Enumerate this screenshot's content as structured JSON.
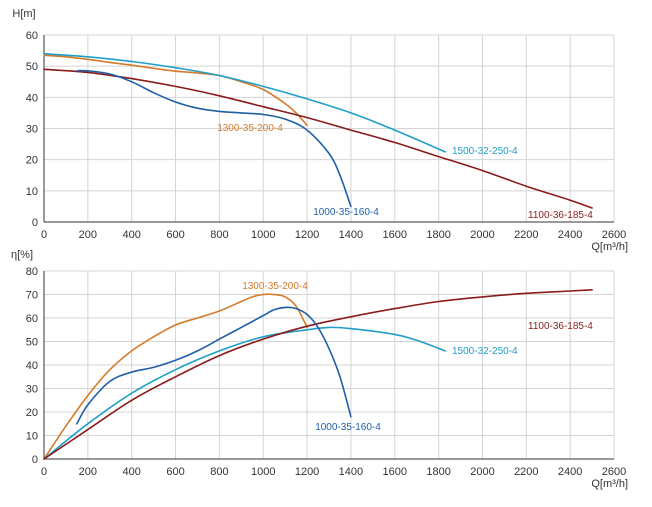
{
  "chart_data": [
    {
      "type": "line",
      "ylabel": "H[m]",
      "xlabel": "Q[m³/h]",
      "xlim": [
        0,
        2600
      ],
      "ylim": [
        0,
        60
      ],
      "xticks": [
        0,
        200,
        400,
        600,
        800,
        1000,
        1200,
        1400,
        1600,
        1800,
        2000,
        2200,
        2400,
        2600
      ],
      "yticks": [
        0,
        10,
        20,
        30,
        40,
        50,
        60
      ],
      "grid": true,
      "series": [
        {
          "name": "1300-35-200-4",
          "color": "#d47a2a",
          "x": [
            0,
            100,
            200,
            300,
            400,
            500,
            600,
            700,
            800,
            900,
            1000,
            1100,
            1150,
            1200
          ],
          "y": [
            53.5,
            53,
            52.2,
            51.2,
            50.3,
            49.3,
            48.4,
            47.8,
            47,
            45,
            42.5,
            38,
            35,
            31
          ]
        },
        {
          "name": "1500-32-250-4",
          "color": "#1f9fc8",
          "x": [
            0,
            200,
            400,
            600,
            800,
            1000,
            1200,
            1400,
            1600,
            1830
          ],
          "y": [
            54,
            53,
            51.5,
            49.5,
            47,
            43.5,
            39.5,
            35,
            29.5,
            22.5
          ]
        },
        {
          "name": "1100-36-185-4",
          "color": "#8b1a1a",
          "x": [
            0,
            200,
            400,
            600,
            800,
            1000,
            1200,
            1400,
            1600,
            1800,
            2000,
            2200,
            2400,
            2500
          ],
          "y": [
            49,
            48,
            46,
            43.5,
            40.5,
            37,
            33.5,
            29.5,
            25.5,
            21,
            16.5,
            11.5,
            7,
            4.5
          ]
        },
        {
          "name": "1000-35-160-4",
          "color": "#1f5fa8",
          "x": [
            150,
            200,
            300,
            400,
            500,
            600,
            700,
            800,
            900,
            1000,
            1100,
            1200,
            1300,
            1350,
            1400
          ],
          "y": [
            48.5,
            48.5,
            47.5,
            45,
            41.5,
            38.5,
            36.5,
            35.5,
            35,
            34.5,
            33,
            29.5,
            22,
            15,
            5
          ]
        }
      ]
    },
    {
      "type": "line",
      "ylabel": "η[%]",
      "xlabel": "Q[m³/h]",
      "xlim": [
        0,
        2600
      ],
      "ylim": [
        0,
        80
      ],
      "xticks": [
        0,
        200,
        400,
        600,
        800,
        1000,
        1200,
        1400,
        1600,
        1800,
        2000,
        2200,
        2400,
        2600
      ],
      "yticks": [
        0,
        10,
        20,
        30,
        40,
        50,
        60,
        70,
        80
      ],
      "grid": true,
      "series": [
        {
          "name": "1300-35-200-4",
          "color": "#d47a2a",
          "x": [
            0,
            100,
            200,
            300,
            400,
            500,
            600,
            700,
            800,
            900,
            950,
            1000,
            1050,
            1100,
            1150,
            1200
          ],
          "y": [
            0,
            14,
            27,
            38,
            46,
            52,
            57,
            60,
            63,
            67,
            69,
            70,
            70,
            69,
            65,
            56
          ]
        },
        {
          "name": "1500-32-250-4",
          "color": "#1f9fc8",
          "x": [
            0,
            200,
            400,
            600,
            800,
            1000,
            1200,
            1300,
            1400,
            1600,
            1700,
            1830
          ],
          "y": [
            0,
            15,
            28,
            38,
            46,
            52,
            55,
            56,
            55.5,
            53,
            50.5,
            46
          ]
        },
        {
          "name": "1100-36-185-4",
          "color": "#8b1a1a",
          "x": [
            0,
            200,
            400,
            600,
            800,
            1000,
            1200,
            1400,
            1600,
            1800,
            2000,
            2200,
            2400,
            2500
          ],
          "y": [
            0,
            12.5,
            25,
            35,
            44,
            51,
            56.5,
            60.5,
            64,
            67,
            69,
            70.5,
            71.5,
            72
          ]
        },
        {
          "name": "1000-35-160-4",
          "color": "#1f5fa8",
          "x": [
            150,
            200,
            300,
            400,
            500,
            600,
            700,
            800,
            900,
            1000,
            1050,
            1100,
            1150,
            1200,
            1250,
            1300,
            1350,
            1400
          ],
          "y": [
            15,
            23,
            33,
            37,
            39,
            42,
            46,
            51,
            56,
            61,
            63.5,
            64.5,
            64,
            61.5,
            56,
            47,
            35,
            18
          ]
        }
      ]
    }
  ]
}
